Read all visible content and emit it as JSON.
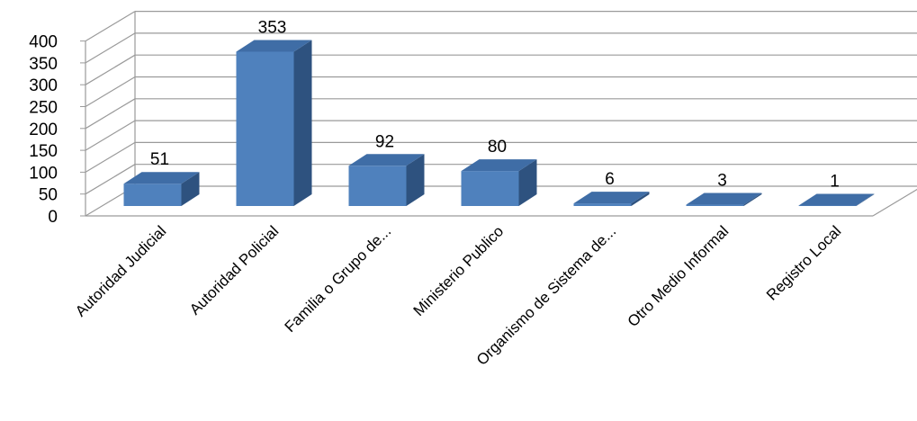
{
  "chart_data": {
    "type": "bar",
    "title": "",
    "xlabel": "",
    "ylabel": "",
    "categories": [
      "Autoridad Judicial",
      "Autoridad Policial",
      "Familia o Grupo de...",
      "Ministerio Publico",
      "Organismo de Sistema de...",
      "Otro Medio Informal",
      "Registro Local"
    ],
    "values": [
      51,
      353,
      92,
      80,
      6,
      3,
      1
    ],
    "yticks": [
      0,
      50,
      100,
      150,
      200,
      250,
      300,
      350,
      400
    ],
    "ylim": [
      0,
      400
    ],
    "grid": true,
    "legend": "none",
    "style": "3d-column",
    "colors": {
      "bar_front": "#4F81BD",
      "bar_top": "#3F6DA6",
      "bar_side": "#2E527F",
      "grid": "#9A9A9A"
    }
  }
}
